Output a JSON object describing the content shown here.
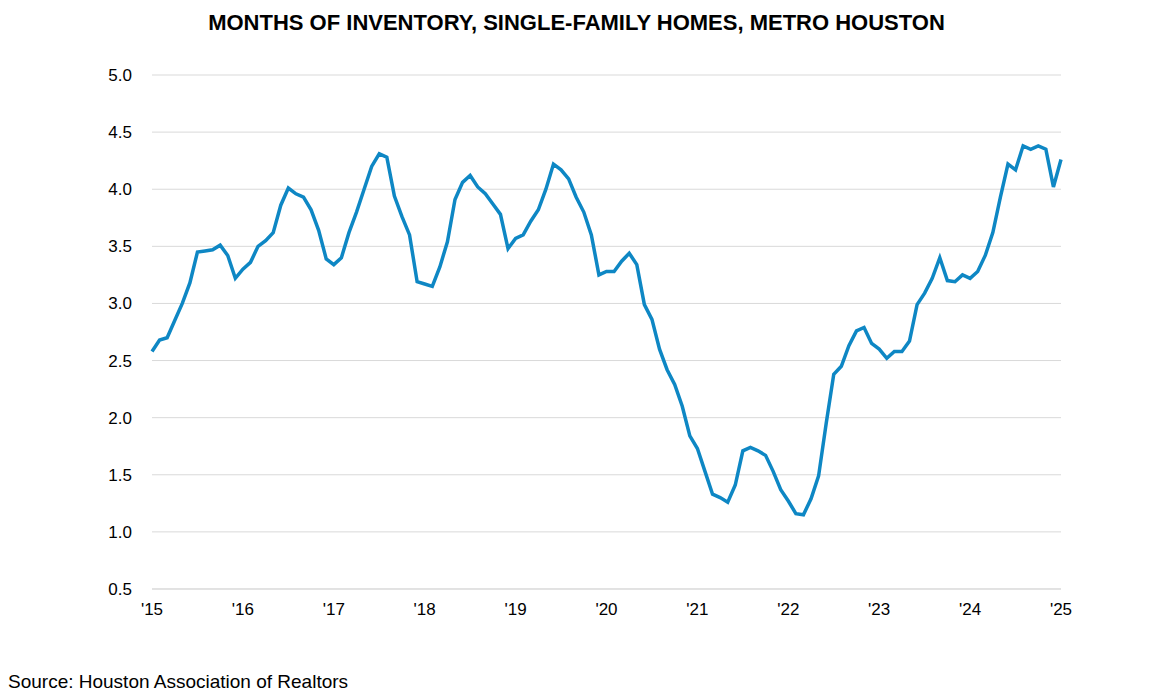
{
  "chart_data": {
    "type": "line",
    "title": "MONTHS OF INVENTORY, SINGLE-FAMILY HOMES, METRO HOUSTON",
    "source": "Source: Houston Association of Realtors",
    "categories": [
      "'15",
      null,
      null,
      null,
      null,
      null,
      null,
      null,
      null,
      null,
      null,
      null,
      "'16",
      null,
      null,
      null,
      null,
      null,
      null,
      null,
      null,
      null,
      null,
      null,
      "'17",
      null,
      null,
      null,
      null,
      null,
      null,
      null,
      null,
      null,
      null,
      null,
      "'18",
      null,
      null,
      null,
      null,
      null,
      null,
      null,
      null,
      null,
      null,
      null,
      "'19",
      null,
      null,
      null,
      null,
      null,
      null,
      null,
      null,
      null,
      null,
      null,
      "'20",
      null,
      null,
      null,
      null,
      null,
      null,
      null,
      null,
      null,
      null,
      null,
      "'21",
      null,
      null,
      null,
      null,
      null,
      null,
      null,
      null,
      null,
      null,
      null,
      "'22",
      null,
      null,
      null,
      null,
      null,
      null,
      null,
      null,
      null,
      null,
      null,
      "'23",
      null,
      null,
      null,
      null,
      null,
      null,
      null,
      null,
      null,
      null,
      null,
      "'24",
      null,
      null,
      null,
      null,
      null,
      null,
      null,
      null,
      null,
      null,
      null,
      "'25"
    ],
    "values": [
      2.58,
      2.68,
      2.7,
      2.85,
      3.0,
      3.18,
      3.45,
      3.46,
      3.47,
      3.51,
      3.42,
      3.22,
      3.3,
      3.36,
      3.5,
      3.55,
      3.62,
      3.86,
      4.01,
      3.96,
      3.93,
      3.82,
      3.64,
      3.39,
      3.34,
      3.4,
      3.62,
      3.8,
      4.0,
      4.2,
      4.31,
      4.28,
      3.94,
      3.76,
      3.6,
      3.19,
      3.17,
      3.15,
      3.32,
      3.54,
      3.91,
      4.06,
      4.12,
      4.02,
      3.96,
      3.87,
      3.78,
      3.48,
      3.57,
      3.6,
      3.72,
      3.82,
      4.0,
      4.22,
      4.17,
      4.09,
      3.93,
      3.8,
      3.6,
      3.25,
      3.28,
      3.28,
      3.37,
      3.44,
      3.34,
      2.99,
      2.86,
      2.6,
      2.42,
      2.29,
      2.1,
      1.84,
      1.73,
      1.53,
      1.33,
      1.3,
      1.26,
      1.41,
      1.71,
      1.74,
      1.71,
      1.67,
      1.53,
      1.37,
      1.27,
      1.16,
      1.15,
      1.29,
      1.49,
      1.95,
      2.38,
      2.45,
      2.63,
      2.76,
      2.79,
      2.65,
      2.6,
      2.52,
      2.58,
      2.58,
      2.67,
      2.99,
      3.09,
      3.22,
      3.4,
      3.2,
      3.19,
      3.25,
      3.22,
      3.28,
      3.42,
      3.62,
      3.93,
      4.22,
      4.17,
      4.38,
      4.35,
      4.38,
      4.35,
      4.02,
      4.26
    ],
    "color": "#0e87c4",
    "ylim": [
      0.5,
      5.0
    ],
    "yticks": [
      0.5,
      {
        "value": 1.0,
        "label": "1.0"
      },
      1.5,
      {
        "value": 2.0,
        "label": "2.0"
      },
      2.5,
      {
        "value": 3.0,
        "label": "3.0"
      },
      3.5,
      {
        "value": 4.0,
        "label": "4.0"
      },
      4.5,
      {
        "value": 5.0,
        "label": "5.0"
      }
    ],
    "grid": true
  }
}
